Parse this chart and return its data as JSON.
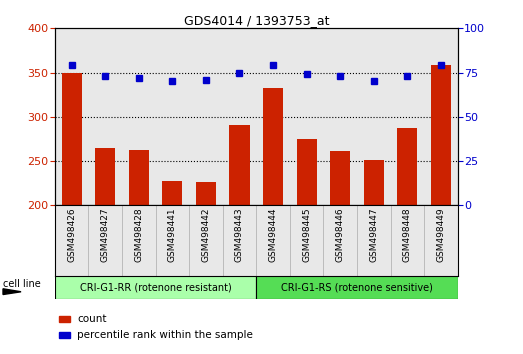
{
  "title": "GDS4014 / 1393753_at",
  "categories": [
    "GSM498426",
    "GSM498427",
    "GSM498428",
    "GSM498441",
    "GSM498442",
    "GSM498443",
    "GSM498444",
    "GSM498445",
    "GSM498446",
    "GSM498447",
    "GSM498448",
    "GSM498449"
  ],
  "bar_values": [
    350,
    265,
    263,
    228,
    226,
    291,
    333,
    275,
    261,
    251,
    287,
    358
  ],
  "percentile_values": [
    79,
    73,
    72,
    70,
    71,
    75,
    79,
    74,
    73,
    70,
    73,
    79
  ],
  "bar_color": "#cc2200",
  "percentile_color": "#0000cc",
  "ylim_left": [
    200,
    400
  ],
  "ylim_right": [
    0,
    100
  ],
  "yticks_left": [
    200,
    250,
    300,
    350,
    400
  ],
  "yticks_right": [
    0,
    25,
    50,
    75,
    100
  ],
  "group1_label": "CRI-G1-RR (rotenone resistant)",
  "group2_label": "CRI-G1-RS (rotenone sensitive)",
  "group1_color": "#aaffaa",
  "group2_color": "#55dd55",
  "group1_count": 6,
  "group2_count": 6,
  "cell_line_label": "cell line",
  "legend_count": "count",
  "legend_percentile": "percentile rank within the sample",
  "col_bg_color": "#e8e8e8",
  "plot_bg": "#ffffff",
  "grid_yticks": [
    250,
    300,
    350
  ]
}
